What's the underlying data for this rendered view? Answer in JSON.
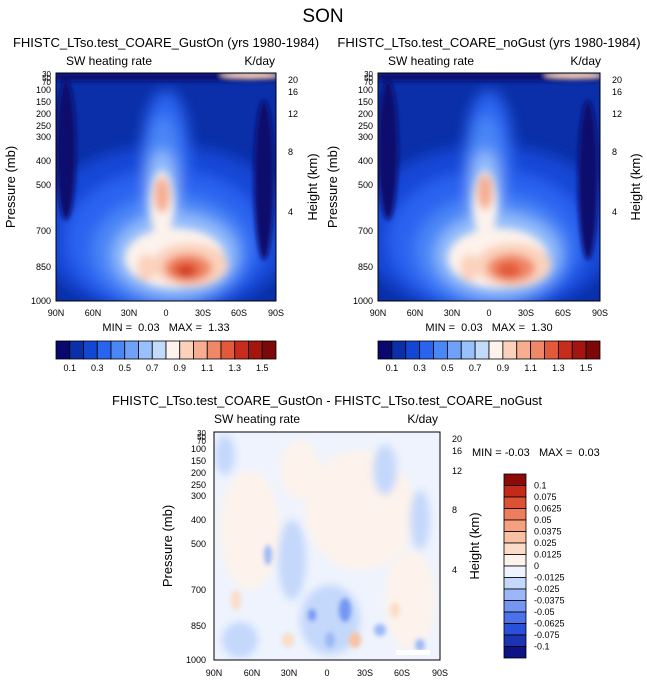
{
  "page_title": "SON",
  "colors": {
    "main_levels": [
      "#08086e",
      "#0a2fa8",
      "#1446d6",
      "#2a63f0",
      "#4a86f6",
      "#6fa2f7",
      "#98c0fa",
      "#c3dbfb",
      "#fdf2ec",
      "#fbd1bc",
      "#f6ad90",
      "#f08868",
      "#e35a3b",
      "#c72c1c",
      "#a3150e",
      "#7d0808"
    ],
    "diff_levels": [
      "#0d1285",
      "#1c33b2",
      "#2a4fd8",
      "#4b72ea",
      "#7396f2",
      "#9bb7f7",
      "#c4d8fb",
      "#eef3fd",
      "#fdf3ec",
      "#fbdcc8",
      "#f8c1a4",
      "#f5a17f",
      "#ee7d5b",
      "#dd5235",
      "#c42a1a",
      "#8c0a08"
    ]
  },
  "chart_data": [
    {
      "type": "heatmap",
      "title": "FHISTC_LTso.test_COARE_GustOn (yrs 1980-1984)",
      "left_label": "SW heating rate",
      "right_label": "K/day",
      "xlabel": "",
      "ylabel": "Pressure (mb)",
      "y2label": "Height (km)",
      "x_ticks": [
        "90N",
        "60N",
        "30N",
        "0",
        "30S",
        "60S",
        "90S"
      ],
      "y_ticks": [
        "30",
        "50",
        "70",
        "100",
        "150",
        "200",
        "250",
        "300",
        "400",
        "500",
        "700",
        "850",
        "1000"
      ],
      "y2_ticks": [
        "20",
        "16",
        "12",
        "8",
        "4"
      ],
      "min_max_text": "MIN =  0.03   MAX =  1.33",
      "xlim": [
        90,
        -90
      ],
      "ylim": [
        1000,
        30
      ]
    },
    {
      "type": "heatmap",
      "title": "FHISTC_LTso.test_COARE_noGust (yrs 1980-1984)",
      "left_label": "SW heating rate",
      "right_label": "K/day",
      "xlabel": "",
      "ylabel": "Pressure (mb)",
      "y2label": "Height (km)",
      "x_ticks": [
        "90N",
        "60N",
        "30N",
        "0",
        "30S",
        "60S",
        "90S"
      ],
      "y_ticks": [
        "30",
        "50",
        "70",
        "100",
        "150",
        "200",
        "250",
        "300",
        "400",
        "500",
        "700",
        "850",
        "1000"
      ],
      "y2_ticks": [
        "20",
        "16",
        "12",
        "8",
        "4"
      ],
      "min_max_text": "MIN =  0.03   MAX =  1.30",
      "xlim": [
        90,
        -90
      ],
      "ylim": [
        1000,
        30
      ]
    },
    {
      "type": "heatmap",
      "title": "FHISTC_LTso.test_COARE_GustOn - FHISTC_LTso.test_COARE_noGust",
      "left_label": "SW heating rate",
      "right_label": "K/day",
      "xlabel": "",
      "ylabel": "Pressure (mb)",
      "y2label": "Height (km)",
      "x_ticks": [
        "90N",
        "60N",
        "30N",
        "0",
        "30S",
        "60S",
        "90S"
      ],
      "y_ticks": [
        "30",
        "50",
        "70",
        "100",
        "150",
        "200",
        "250",
        "300",
        "400",
        "500",
        "700",
        "850",
        "1000"
      ],
      "y2_ticks": [
        "20",
        "16",
        "12",
        "8",
        "4"
      ],
      "min_max_text": "MIN = -0.03   MAX =  0.03",
      "xlim": [
        90,
        -90
      ],
      "ylim": [
        1000,
        30
      ]
    }
  ],
  "main_colorbar": {
    "labels": [
      "0.1",
      "0.3",
      "0.5",
      "0.7",
      "0.9",
      "1.1",
      "1.3",
      "1.5"
    ]
  },
  "diff_colorbar": {
    "labels": [
      "0.1",
      "0.075",
      "0.0625",
      "0.05",
      "0.0375",
      "0.025",
      "0.0125",
      "0",
      "-0.0125",
      "-0.025",
      "-0.0375",
      "-0.05",
      "-0.0625",
      "-0.075",
      "-0.1"
    ]
  }
}
